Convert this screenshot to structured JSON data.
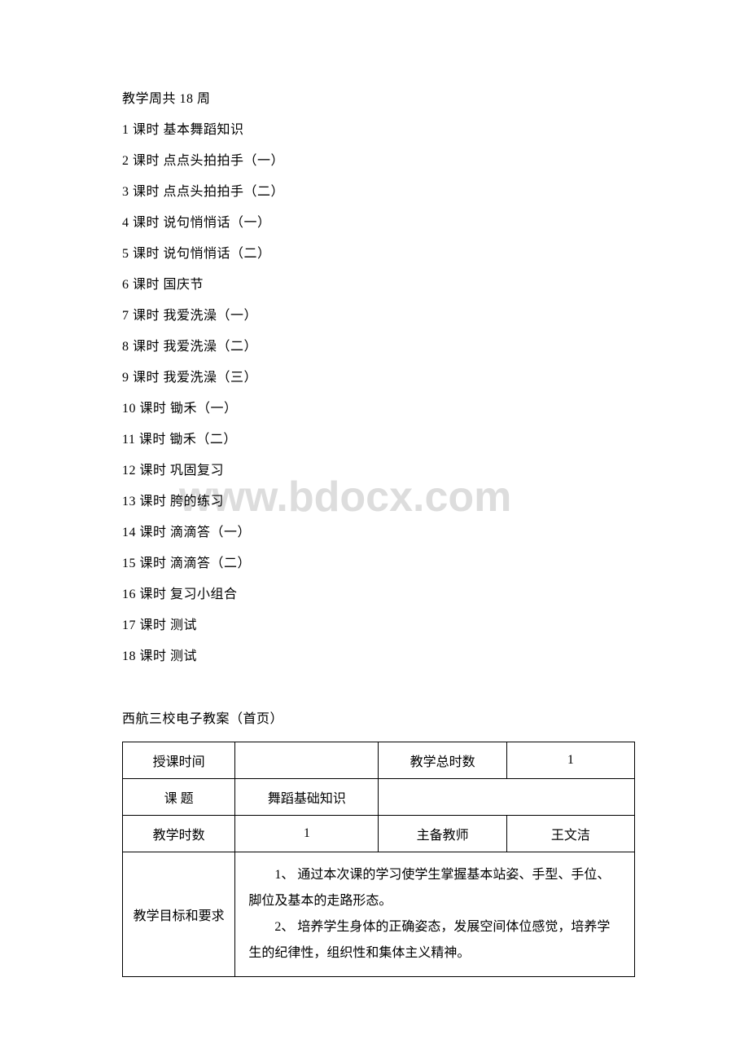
{
  "schedule": {
    "header": "教学周共 18 周",
    "items": [
      "1 课时 基本舞蹈知识",
      "2 课时 点点头拍拍手（一）",
      "3 课时  点点头拍拍手（二）",
      "4 课时  说句悄悄话（一）",
      "5 课时 说句悄悄话（二）",
      "6 课时 国庆节",
      "7 课时 我爱洗澡（一）",
      "8 课时 我爱洗澡（二）",
      "9 课时 我爱洗澡（三）",
      "10 课时 锄禾（一）",
      "11 课时 锄禾（二）",
      "12 课时 巩固复习",
      "13 课时  胯的练习",
      "14 课时  滴滴答（一）",
      "15 课时 滴滴答（二）",
      "16 课时  复习小组合",
      "17 课时  测试",
      "18 课时 测试"
    ]
  },
  "watermark_text": "www.bdocx.com",
  "table_section": {
    "title": "西航三校电子教案（首页）",
    "rows": {
      "row1": {
        "label1": "授课时间",
        "value1": "",
        "label2": "教学总时数",
        "value2": "1"
      },
      "row2": {
        "label": "课 题",
        "value": "舞蹈基础知识"
      },
      "row3": {
        "label1": "教学时数",
        "value1": "1",
        "label2": "主备教师",
        "value2": "王文洁"
      },
      "row4": {
        "label": "教学目标和要求",
        "para1": "　　1、 通过本次课的学习使学生掌握基本站姿、手型、手位、脚位及基本的走路形态。",
        "para2": "　　2、 培养学生身体的正确姿态，发展空间体位感觉，培养学生的纪律性，组织性和集体主义精神。"
      }
    }
  }
}
